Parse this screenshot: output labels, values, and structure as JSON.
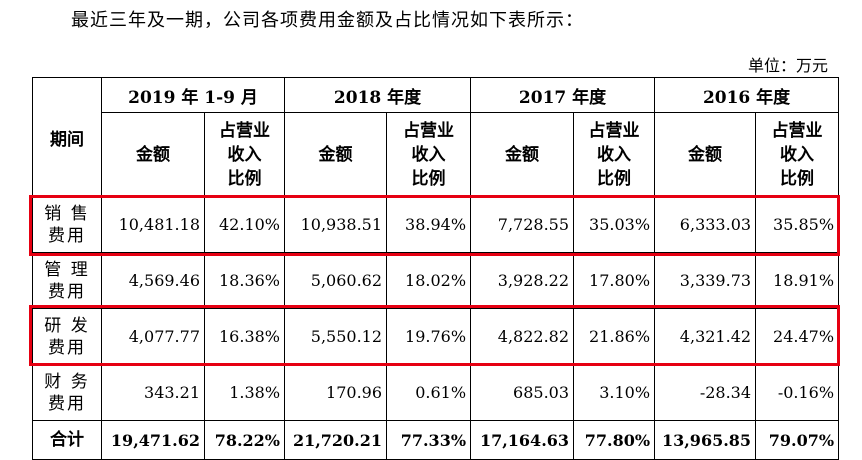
{
  "intro": "最近三年及一期，公司各项费用金额及占比情况如下表所示：",
  "unit": "单位：万元",
  "table": {
    "period_label": "期间",
    "years": [
      "2019 年 1-9 月",
      "2018 年度",
      "2017 年度",
      "2016 年度"
    ],
    "amount_label": "金额",
    "ratio_label": [
      "占营业",
      "收入",
      "比例"
    ],
    "rows": [
      {
        "cat1": "销 售",
        "cat2": "费用",
        "values": [
          "10,481.18",
          "42.10%",
          "10,938.51",
          "38.94%",
          "7,728.55",
          "35.03%",
          "6,333.03",
          "35.85%"
        ]
      },
      {
        "cat1": "管 理",
        "cat2": "费用",
        "values": [
          "4,569.46",
          "18.36%",
          "5,060.62",
          "18.02%",
          "3,928.22",
          "17.80%",
          "3,339.73",
          "18.91%"
        ]
      },
      {
        "cat1": "研 发",
        "cat2": "费用",
        "values": [
          "4,077.77",
          "16.38%",
          "5,550.12",
          "19.76%",
          "4,822.82",
          "21.86%",
          "4,321.42",
          "24.47%"
        ]
      },
      {
        "cat1": "财 务",
        "cat2": "费用",
        "values": [
          "343.21",
          "1.38%",
          "170.96",
          "0.61%",
          "685.03",
          "3.10%",
          "-28.34",
          "-0.16%"
        ]
      }
    ],
    "total": {
      "label": "合计",
      "values": [
        "19,471.62",
        "78.22%",
        "21,720.21",
        "77.33%",
        "17,164.63",
        "77.80%",
        "13,965.85",
        "79.07%"
      ]
    }
  },
  "highlight_color": "#e60012"
}
